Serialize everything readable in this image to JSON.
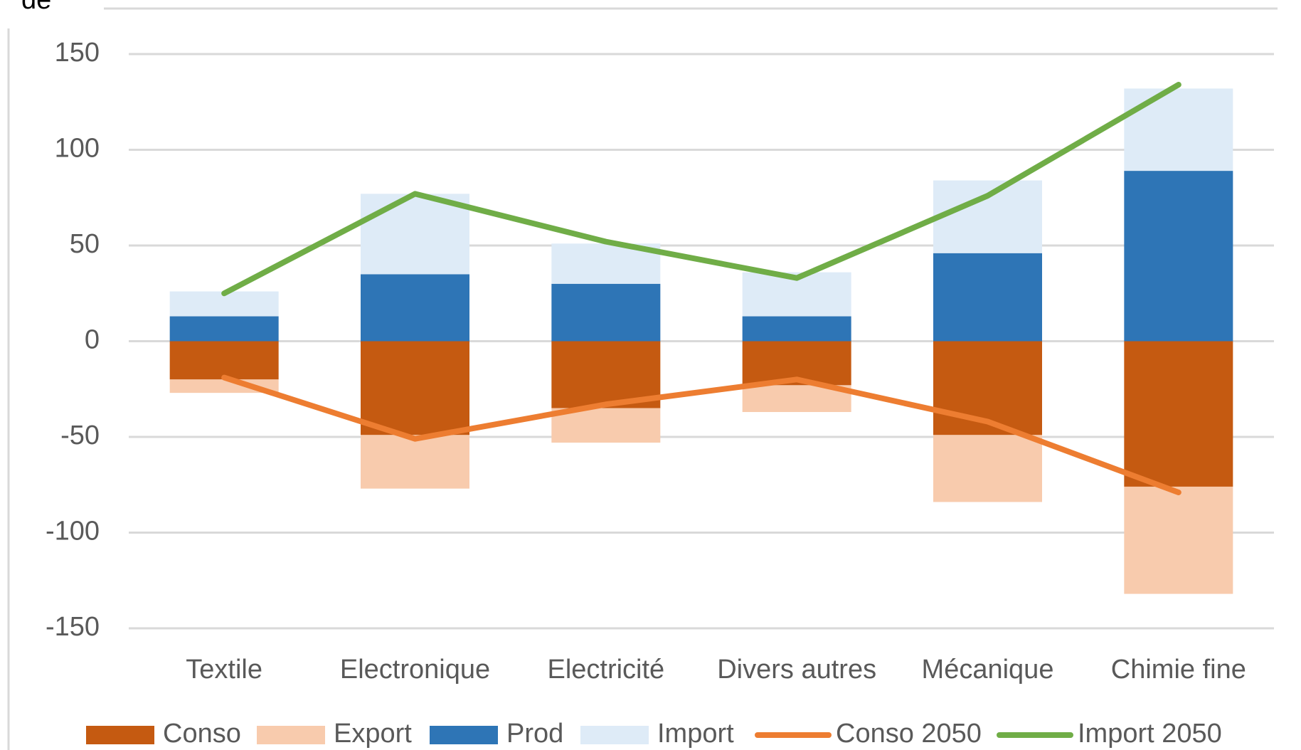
{
  "chart_data": {
    "type": "bar",
    "title": "de",
    "categories": [
      "Textile",
      "Electronique",
      "Electricité",
      "Divers autres",
      "Mécanique",
      "Chimie fine"
    ],
    "series": [
      {
        "name": "Conso",
        "type": "bar",
        "color": "#c55a11",
        "values": [
          -20,
          -49,
          -35,
          -23,
          -49,
          -76
        ]
      },
      {
        "name": "Export",
        "type": "bar",
        "color": "#f8cbad",
        "values": [
          -7,
          -28,
          -18,
          -14,
          -35,
          -56
        ]
      },
      {
        "name": "Prod",
        "type": "bar",
        "color": "#2e75b6",
        "values": [
          13,
          35,
          30,
          13,
          46,
          89
        ]
      },
      {
        "name": "Import",
        "type": "bar",
        "color": "#deebf7",
        "values": [
          13,
          42,
          21,
          23,
          38,
          43
        ]
      },
      {
        "name": "Conso 2050",
        "type": "line",
        "color": "#ed7d31",
        "values": [
          -19,
          -51,
          -33,
          -20,
          -42,
          -79
        ]
      },
      {
        "name": "Import 2050",
        "type": "line",
        "color": "#70ad47",
        "values": [
          25,
          77,
          52,
          33,
          76,
          134
        ]
      }
    ],
    "ylim": [
      -150,
      150
    ],
    "yticks": [
      -150,
      -100,
      -50,
      0,
      50,
      100,
      150
    ],
    "grid": true,
    "legend": "bottom"
  }
}
